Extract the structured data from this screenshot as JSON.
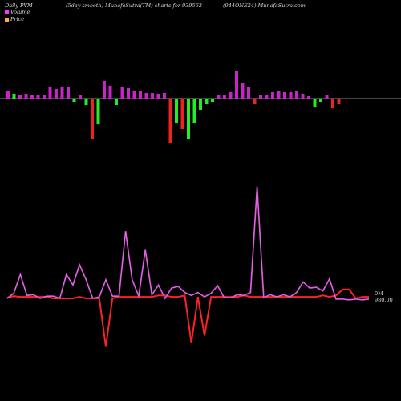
{
  "header": {
    "left": "Daily PVM",
    "center": "(5day smooth) MunafaSutra(TM) charts for 939563",
    "right": "(944ONE24) MunafaSutra.com"
  },
  "legend": [
    {
      "label": "Volume",
      "color": "#ff33ff"
    },
    {
      "label": "Price",
      "color": "#ffaa44"
    }
  ],
  "colors": {
    "background": "#000000",
    "vol_up": "#cc22cc",
    "vol_green": "#22ee22",
    "vol_red": "#ee2222",
    "price_line": "#ff2222",
    "volume_line": "#cc44cc",
    "baseline": "#bbbbbb"
  },
  "end_labels": {
    "volume": "0M",
    "price": "980.00"
  },
  "chart_data": [
    {
      "type": "bar",
      "title": "",
      "series": [
        {
          "values": [
            10,
            6,
            5,
            6,
            5,
            5,
            5,
            14,
            12,
            15,
            14,
            -4,
            5,
            -8,
            -50,
            -32,
            22,
            16,
            -8,
            15,
            13,
            10,
            9,
            7,
            7,
            6,
            7,
            -55,
            -30,
            -38,
            -50,
            -30,
            -14,
            -7,
            -4,
            4,
            5,
            8,
            35,
            20,
            14,
            -7,
            5,
            5,
            8,
            9,
            8,
            8,
            10,
            6,
            3,
            -10,
            -4,
            4,
            -12,
            -7
          ],
          "colors": [
            "u",
            "g",
            "u",
            "u",
            "u",
            "u",
            "u",
            "u",
            "u",
            "u",
            "u",
            "g",
            "u",
            "g",
            "r",
            "g",
            "u",
            "u",
            "g",
            "u",
            "u",
            "u",
            "u",
            "u",
            "u",
            "u",
            "u",
            "r",
            "g",
            "r",
            "g",
            "g",
            "g",
            "g",
            "g",
            "u",
            "u",
            "u",
            "u",
            "u",
            "u",
            "r",
            "u",
            "u",
            "u",
            "u",
            "u",
            "u",
            "u",
            "u",
            "u",
            "g",
            "g",
            "u",
            "r",
            "r"
          ]
        }
      ]
    },
    {
      "type": "line",
      "title": "",
      "series": [
        {
          "values": [
            0,
            7,
            32,
            4,
            5,
            0,
            3,
            3,
            0,
            32,
            18,
            45,
            25,
            0,
            2,
            25,
            3,
            3,
            90,
            25,
            3,
            65,
            5,
            18,
            0,
            14,
            16,
            8,
            4,
            8,
            2,
            7,
            17,
            1,
            1,
            5,
            4,
            8,
            150,
            1,
            5,
            2,
            5,
            2,
            8,
            22,
            14,
            15,
            10,
            26,
            -1,
            -1,
            -2,
            -1,
            -2,
            -1
          ]
        },
        {
          "values": [
            1,
            3,
            2,
            2,
            2,
            2,
            2,
            0,
            0,
            0,
            0,
            2,
            0,
            0,
            0,
            -65,
            0,
            2,
            2,
            2,
            2,
            2,
            2,
            4,
            4,
            2,
            2,
            4,
            -60,
            2,
            -50,
            2,
            2,
            2,
            2,
            2,
            4,
            2,
            2,
            2,
            2,
            2,
            2,
            2,
            2,
            2,
            2,
            2,
            4,
            2,
            4,
            12,
            12,
            0,
            2,
            2
          ]
        }
      ]
    }
  ]
}
